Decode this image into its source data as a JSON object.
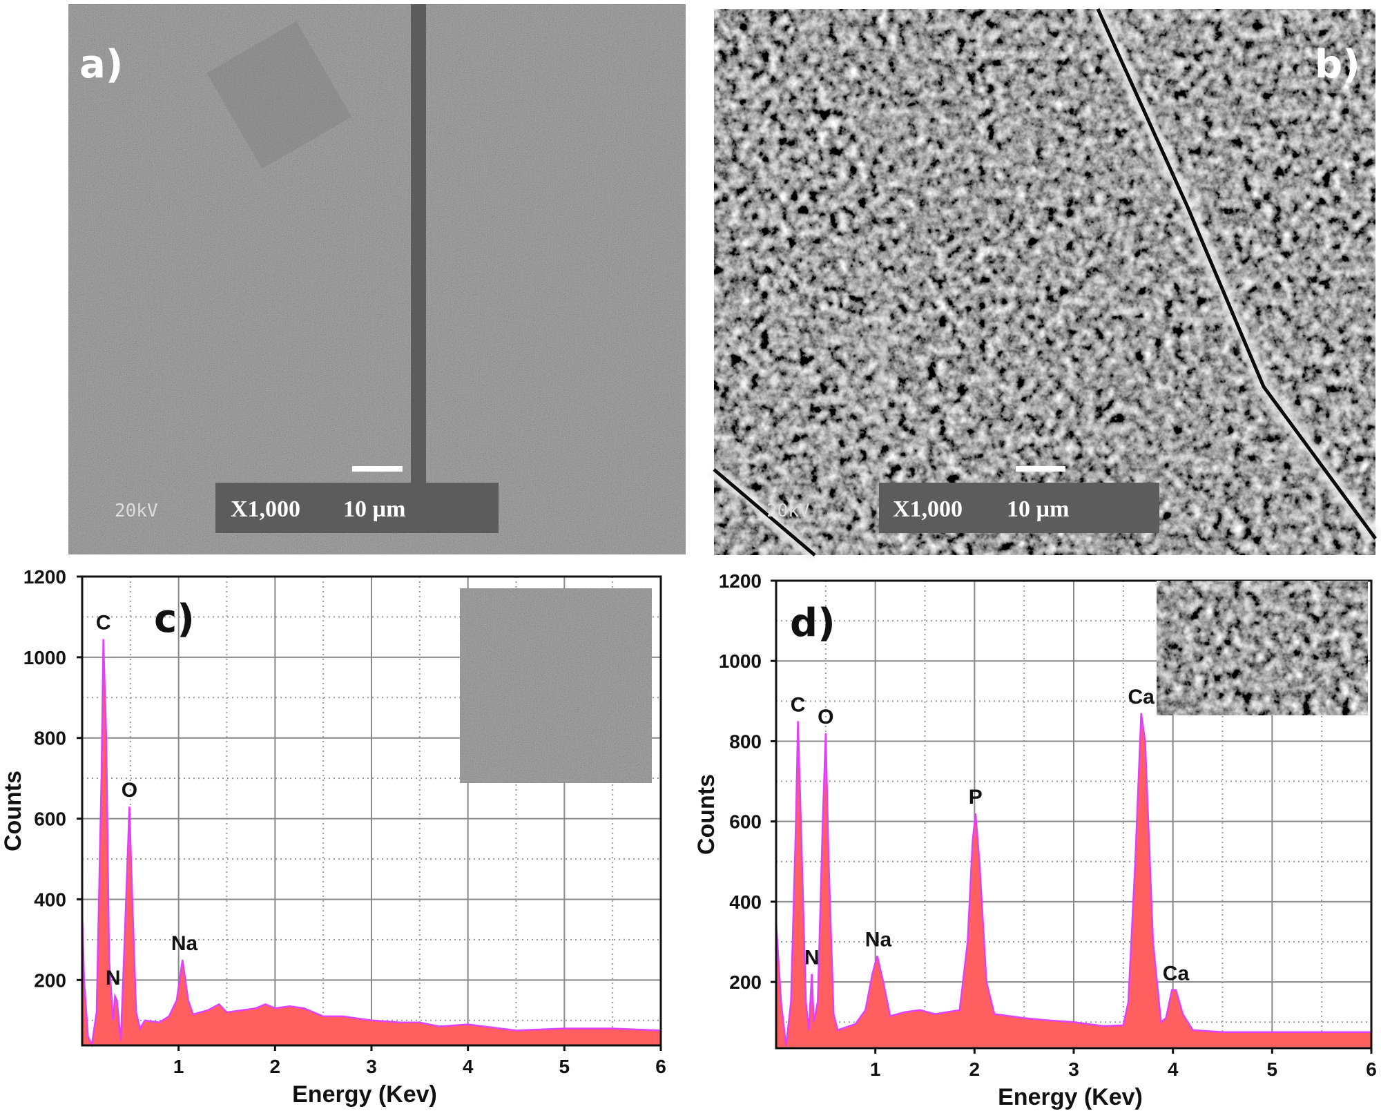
{
  "panels": {
    "a": {
      "label": "a)",
      "voltage": "20kV",
      "magnification": "X1,000",
      "scale": "10 µm"
    },
    "b": {
      "label": "b)",
      "voltage": "20kV",
      "magnification": "X1,000",
      "scale": "10 µm"
    }
  },
  "chart_data": [
    {
      "type": "area",
      "panel_label": "c)",
      "xlabel": "Energy (Kev)",
      "ylabel": "Counts",
      "xlim": [
        0,
        6
      ],
      "ylim": [
        38,
        1200
      ],
      "xticks": [
        1,
        2,
        3,
        4,
        5,
        6
      ],
      "yticks": [
        200,
        400,
        600,
        800,
        1000,
        1200
      ],
      "grid": true,
      "fill_color": "#ff5f5f",
      "line_color": "#e040fb",
      "points": [
        [
          0,
          370
        ],
        [
          0.02,
          200
        ],
        [
          0.06,
          60
        ],
        [
          0.1,
          40
        ],
        [
          0.15,
          120
        ],
        [
          0.2,
          700
        ],
        [
          0.22,
          1045
        ],
        [
          0.25,
          800
        ],
        [
          0.28,
          250
        ],
        [
          0.32,
          100
        ],
        [
          0.34,
          160
        ],
        [
          0.36,
          150
        ],
        [
          0.4,
          50
        ],
        [
          0.44,
          300
        ],
        [
          0.49,
          630
        ],
        [
          0.52,
          400
        ],
        [
          0.56,
          120
        ],
        [
          0.6,
          80
        ],
        [
          0.65,
          100
        ],
        [
          0.8,
          95
        ],
        [
          0.9,
          110
        ],
        [
          0.98,
          150
        ],
        [
          1.04,
          250
        ],
        [
          1.1,
          150
        ],
        [
          1.15,
          115
        ],
        [
          1.3,
          125
        ],
        [
          1.42,
          140
        ],
        [
          1.5,
          120
        ],
        [
          1.8,
          130
        ],
        [
          1.9,
          140
        ],
        [
          2.0,
          130
        ],
        [
          2.15,
          135
        ],
        [
          2.3,
          130
        ],
        [
          2.5,
          110
        ],
        [
          2.7,
          110
        ],
        [
          3.0,
          100
        ],
        [
          3.3,
          95
        ],
        [
          3.5,
          95
        ],
        [
          3.7,
          85
        ],
        [
          4.0,
          90
        ],
        [
          4.5,
          75
        ],
        [
          5.0,
          80
        ],
        [
          5.5,
          80
        ],
        [
          6.0,
          75
        ]
      ],
      "annotations": [
        {
          "text": "C",
          "x": 0.22,
          "y": 1045
        },
        {
          "text": "N",
          "x": 0.32,
          "y": 165
        },
        {
          "text": "O",
          "x": 0.49,
          "y": 630
        },
        {
          "text": "Na",
          "x": 1.06,
          "y": 250
        }
      ]
    },
    {
      "type": "area",
      "panel_label": "d)",
      "xlabel": "Energy (Kev)",
      "ylabel": "Counts",
      "xlim": [
        0,
        6
      ],
      "ylim": [
        35,
        1200
      ],
      "xticks": [
        1,
        2,
        3,
        4,
        5,
        6
      ],
      "yticks": [
        200,
        400,
        600,
        800,
        1000,
        1200
      ],
      "grid": true,
      "fill_color": "#ff5f5f",
      "line_color": "#e040fb",
      "points": [
        [
          0,
          350
        ],
        [
          0.05,
          150
        ],
        [
          0.1,
          40
        ],
        [
          0.15,
          150
        ],
        [
          0.2,
          600
        ],
        [
          0.22,
          850
        ],
        [
          0.25,
          600
        ],
        [
          0.3,
          150
        ],
        [
          0.33,
          80
        ],
        [
          0.36,
          220
        ],
        [
          0.38,
          100
        ],
        [
          0.42,
          150
        ],
        [
          0.47,
          600
        ],
        [
          0.5,
          820
        ],
        [
          0.53,
          500
        ],
        [
          0.58,
          120
        ],
        [
          0.62,
          80
        ],
        [
          0.8,
          95
        ],
        [
          0.9,
          130
        ],
        [
          0.97,
          220
        ],
        [
          1.02,
          265
        ],
        [
          1.08,
          200
        ],
        [
          1.15,
          115
        ],
        [
          1.3,
          125
        ],
        [
          1.45,
          130
        ],
        [
          1.6,
          120
        ],
        [
          1.85,
          130
        ],
        [
          1.93,
          300
        ],
        [
          1.98,
          550
        ],
        [
          2.01,
          620
        ],
        [
          2.05,
          500
        ],
        [
          2.12,
          200
        ],
        [
          2.2,
          120
        ],
        [
          2.5,
          110
        ],
        [
          2.7,
          105
        ],
        [
          3.0,
          100
        ],
        [
          3.3,
          90
        ],
        [
          3.5,
          92
        ],
        [
          3.55,
          150
        ],
        [
          3.62,
          500
        ],
        [
          3.68,
          870
        ],
        [
          3.72,
          800
        ],
        [
          3.8,
          300
        ],
        [
          3.88,
          100
        ],
        [
          3.93,
          110
        ],
        [
          3.99,
          180
        ],
        [
          4.03,
          180
        ],
        [
          4.1,
          120
        ],
        [
          4.2,
          80
        ],
        [
          4.5,
          75
        ],
        [
          5,
          75
        ],
        [
          6,
          75
        ]
      ],
      "annotations": [
        {
          "text": "C",
          "x": 0.22,
          "y": 850
        },
        {
          "text": "N",
          "x": 0.36,
          "y": 220
        },
        {
          "text": "O",
          "x": 0.5,
          "y": 820
        },
        {
          "text": "Na",
          "x": 1.03,
          "y": 265
        },
        {
          "text": "P",
          "x": 2.01,
          "y": 620
        },
        {
          "text": "Ca",
          "x": 3.68,
          "y": 870
        },
        {
          "text": "Ca",
          "x": 4.03,
          "y": 180
        }
      ]
    }
  ]
}
